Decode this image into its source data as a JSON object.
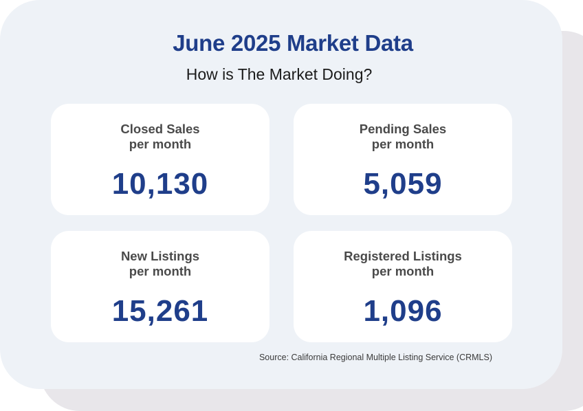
{
  "title": "June 2025 Market Data",
  "subtitle": "How is The Market Doing?",
  "stats": [
    {
      "label_line1": "Closed Sales",
      "label_line2": "per month",
      "value": "10,130"
    },
    {
      "label_line1": "Pending Sales",
      "label_line2": "per month",
      "value": "5,059"
    },
    {
      "label_line1": "New Listings",
      "label_line2": "per month",
      "value": "15,261"
    },
    {
      "label_line1": "Registered Listings",
      "label_line2": "per month",
      "value": "1,096"
    }
  ],
  "source": "Source: California Regional Multiple Listing Service (CRMLS)",
  "colors": {
    "accent": "#1f3e8a",
    "card_background": "#eef2f7",
    "shadow": "#e8e6ea",
    "stat_background": "#ffffff"
  }
}
